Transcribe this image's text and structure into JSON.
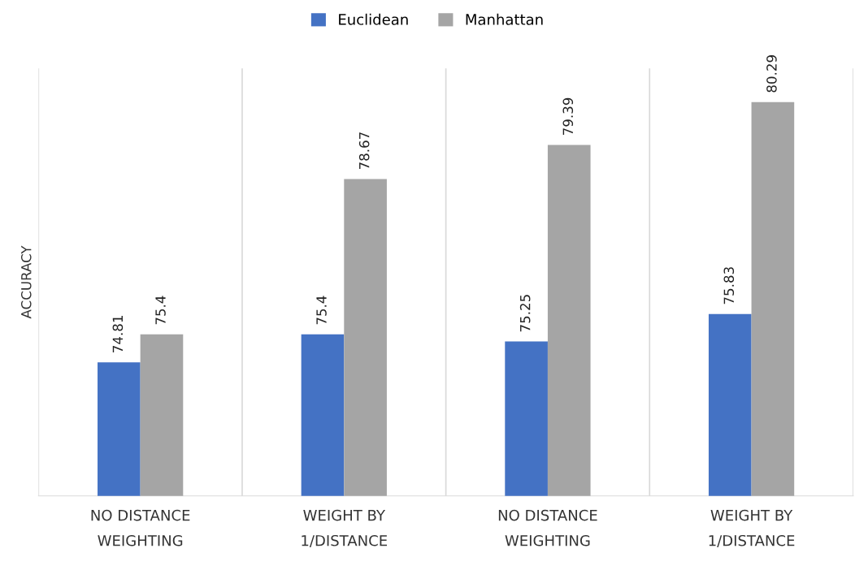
{
  "chart_data": {
    "type": "bar",
    "ylabel": "ACCURACY",
    "categories": [
      "NO DISTANCE WEIGHTING",
      "WEIGHT BY 1/DISTANCE",
      "NO DISTANCE WEIGHTING",
      "WEIGHT BY 1/DISTANCE"
    ],
    "series": [
      {
        "name": "Euclidean",
        "color": "#4472c4",
        "values": [
          74.81,
          75.4,
          75.25,
          75.83
        ]
      },
      {
        "name": "Manhattan",
        "color": "#a5a5a5",
        "values": [
          75.4,
          78.67,
          79.39,
          80.29
        ]
      }
    ],
    "ylim": [
      72,
      81
    ],
    "tick_labels": "x",
    "data_labels": true,
    "grid": "x",
    "legend": "top"
  }
}
